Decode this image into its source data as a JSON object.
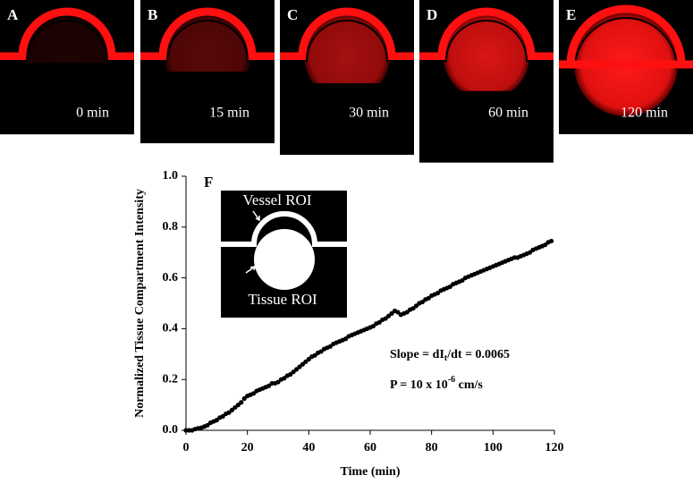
{
  "panels": [
    {
      "label": "A",
      "time": "0 min"
    },
    {
      "label": "B",
      "time": "15 min"
    },
    {
      "label": "C",
      "time": "30 min"
    },
    {
      "label": "D",
      "time": "60 min"
    },
    {
      "label": "E",
      "time": "120 min"
    }
  ],
  "chart_data": {
    "type": "scatter",
    "panel_label": "F",
    "xlabel": "Time (min)",
    "ylabel": "Normalized Tissue Compartment Intensity",
    "inset": {
      "vessel": "Vessel ROI",
      "tissue": "Tissue ROI"
    },
    "slope_text": {
      "before": "Slope = dI",
      "sub": "t",
      "after": "/dt = 0.0065"
    },
    "permeability_text": {
      "before": "P = 10 x 10",
      "sup": "-6",
      "after": " cm/s"
    },
    "color": "#000000",
    "xlim": [
      0,
      120
    ],
    "xticks": [
      0,
      20,
      40,
      60,
      80,
      100,
      120
    ],
    "ylim": [
      0,
      1
    ],
    "yticks": [
      {
        "value": 0,
        "label": "0.0"
      },
      {
        "value": 0.2,
        "label": "0.2"
      },
      {
        "value": 0.4,
        "label": "0.4"
      },
      {
        "value": 0.6,
        "label": "0.6"
      },
      {
        "value": 0.8,
        "label": "0.8"
      },
      {
        "value": 1,
        "label": "1.0"
      }
    ],
    "x": [
      0,
      1,
      2,
      3,
      4,
      5,
      6,
      7,
      8,
      9,
      10,
      11,
      12,
      13,
      14,
      15,
      16,
      17,
      18,
      19,
      20,
      21,
      22,
      23,
      24,
      25,
      26,
      27,
      28,
      29,
      30,
      31,
      32,
      33,
      34,
      35,
      36,
      37,
      38,
      39,
      40,
      41,
      42,
      43,
      44,
      45,
      46,
      47,
      48,
      49,
      50,
      51,
      52,
      53,
      54,
      55,
      56,
      57,
      58,
      59,
      60,
      61,
      62,
      63,
      64,
      65,
      66,
      67,
      68,
      69,
      70,
      71,
      72,
      73,
      74,
      75,
      76,
      77,
      78,
      79,
      80,
      81,
      82,
      83,
      84,
      85,
      86,
      87,
      88,
      89,
      90,
      91,
      92,
      93,
      94,
      95,
      96,
      97,
      98,
      99,
      100,
      101,
      102,
      103,
      104,
      105,
      106,
      107,
      108,
      109,
      110,
      111,
      112,
      113,
      114,
      115,
      116,
      117,
      118,
      119
    ],
    "values": [
      0,
      0,
      0,
      0.005,
      0.008,
      0.01,
      0.015,
      0.02,
      0.03,
      0.035,
      0.04,
      0.05,
      0.055,
      0.065,
      0.07,
      0.08,
      0.09,
      0.1,
      0.11,
      0.125,
      0.135,
      0.14,
      0.145,
      0.155,
      0.16,
      0.165,
      0.17,
      0.175,
      0.185,
      0.185,
      0.19,
      0.2,
      0.205,
      0.215,
      0.22,
      0.23,
      0.24,
      0.25,
      0.26,
      0.27,
      0.28,
      0.29,
      0.295,
      0.305,
      0.31,
      0.32,
      0.325,
      0.33,
      0.34,
      0.345,
      0.35,
      0.355,
      0.36,
      0.37,
      0.375,
      0.38,
      0.385,
      0.39,
      0.395,
      0.4,
      0.405,
      0.41,
      0.42,
      0.425,
      0.435,
      0.44,
      0.45,
      0.46,
      0.47,
      0.465,
      0.455,
      0.46,
      0.465,
      0.475,
      0.48,
      0.49,
      0.5,
      0.505,
      0.515,
      0.52,
      0.53,
      0.535,
      0.54,
      0.55,
      0.555,
      0.56,
      0.565,
      0.575,
      0.58,
      0.585,
      0.59,
      0.6,
      0.605,
      0.61,
      0.615,
      0.62,
      0.625,
      0.63,
      0.635,
      0.64,
      0.645,
      0.65,
      0.655,
      0.66,
      0.665,
      0.67,
      0.675,
      0.68,
      0.68,
      0.685,
      0.69,
      0.695,
      0.7,
      0.71,
      0.715,
      0.72,
      0.725,
      0.73,
      0.74,
      0.745
    ]
  }
}
